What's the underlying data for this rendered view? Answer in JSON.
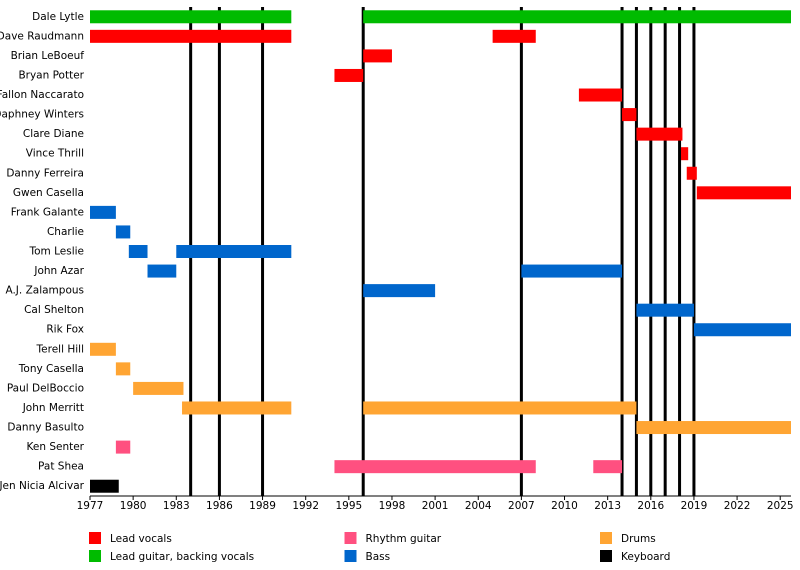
{
  "chart_data": {
    "type": "timeline",
    "roles": [
      {
        "name": "Lead vocals",
        "color": "#ff0000"
      },
      {
        "name": "Lead guitar, backing vocals",
        "color": "#00bb00"
      },
      {
        "name": "Rhythm guitar",
        "color": "#ff5080"
      },
      {
        "name": "Bass",
        "color": "#0066cc"
      },
      {
        "name": "Drums",
        "color": "#ffa533"
      },
      {
        "name": "Keyboard",
        "color": "#000000"
      }
    ],
    "members": [
      {
        "name": "Dale Lytle",
        "periods": [
          {
            "role": 1,
            "start": 1977,
            "end": 1991
          },
          {
            "role": 1,
            "start": 1996,
            "end": 2025.75
          }
        ]
      },
      {
        "name": "Dave Raudmann",
        "periods": [
          {
            "role": 0,
            "start": 1977,
            "end": 1991
          },
          {
            "role": 0,
            "start": 2005,
            "end": 2008
          }
        ]
      },
      {
        "name": "Brian LeBoeuf",
        "periods": [
          {
            "role": 0,
            "start": 1996,
            "end": 1998
          }
        ]
      },
      {
        "name": "Bryan Potter",
        "periods": [
          {
            "role": 0,
            "start": 1994,
            "end": 1996
          }
        ]
      },
      {
        "name": "Fallon Naccarato",
        "periods": [
          {
            "role": 0,
            "start": 2011,
            "end": 2014
          }
        ]
      },
      {
        "name": "Daphney Winters",
        "periods": [
          {
            "role": 0,
            "start": 2014,
            "end": 2015
          }
        ]
      },
      {
        "name": "Clare Diane",
        "periods": [
          {
            "role": 0,
            "start": 2015,
            "end": 2018.2
          }
        ]
      },
      {
        "name": "Vince Thrill",
        "periods": [
          {
            "role": 0,
            "start": 2018.1,
            "end": 2018.6
          }
        ]
      },
      {
        "name": "Danny Ferreira",
        "periods": [
          {
            "role": 0,
            "start": 2018.5,
            "end": 2019.2
          }
        ]
      },
      {
        "name": "Gwen Casella",
        "periods": [
          {
            "role": 0,
            "start": 2019.2,
            "end": 2025.75
          }
        ]
      },
      {
        "name": "Frank Galante",
        "periods": [
          {
            "role": 3,
            "start": 1977,
            "end": 1978.8
          }
        ]
      },
      {
        "name": "Charlie",
        "periods": [
          {
            "role": 3,
            "start": 1978.8,
            "end": 1979.8
          }
        ]
      },
      {
        "name": "Tom Leslie",
        "periods": [
          {
            "role": 3,
            "start": 1979.7,
            "end": 1981
          },
          {
            "role": 3,
            "start": 1983,
            "end": 1991
          }
        ]
      },
      {
        "name": "John Azar",
        "periods": [
          {
            "role": 3,
            "start": 1981,
            "end": 1983
          },
          {
            "role": 3,
            "start": 2007,
            "end": 2014
          }
        ]
      },
      {
        "name": "A.J. Zalampous",
        "periods": [
          {
            "role": 3,
            "start": 1996,
            "end": 2001
          }
        ]
      },
      {
        "name": "Cal Shelton",
        "periods": [
          {
            "role": 3,
            "start": 2015,
            "end": 2019
          }
        ]
      },
      {
        "name": "Rik Fox",
        "periods": [
          {
            "role": 3,
            "start": 2019,
            "end": 2025.75
          }
        ]
      },
      {
        "name": "Terell Hill",
        "periods": [
          {
            "role": 4,
            "start": 1977,
            "end": 1978.8
          }
        ]
      },
      {
        "name": "Tony Casella",
        "periods": [
          {
            "role": 4,
            "start": 1978.8,
            "end": 1979.8
          }
        ]
      },
      {
        "name": "Paul DelBoccio",
        "periods": [
          {
            "role": 4,
            "start": 1980,
            "end": 1983.5
          }
        ]
      },
      {
        "name": "John Merritt",
        "periods": [
          {
            "role": 4,
            "start": 1983.4,
            "end": 1991
          },
          {
            "role": 4,
            "start": 1996,
            "end": 2015
          }
        ]
      },
      {
        "name": "Danny Basulto",
        "periods": [
          {
            "role": 4,
            "start": 2015,
            "end": 2025.75
          }
        ]
      },
      {
        "name": "Ken Senter",
        "periods": [
          {
            "role": 2,
            "start": 1978.8,
            "end": 1979.8
          }
        ]
      },
      {
        "name": "Pat Shea",
        "periods": [
          {
            "role": 2,
            "start": 1994,
            "end": 2008
          },
          {
            "role": 2,
            "start": 2012,
            "end": 2014
          }
        ]
      },
      {
        "name": "Jen Nicia Alcivar",
        "periods": [
          {
            "role": 5,
            "start": 1977,
            "end": 1979
          }
        ]
      }
    ],
    "events": [
      1984,
      1986,
      1989,
      1996,
      2007,
      2014,
      2015,
      2016,
      2017,
      2018,
      2019
    ],
    "xlim": [
      1977,
      2025.75
    ],
    "xticks": [
      1977,
      1980,
      1983,
      1986,
      1989,
      1992,
      1995,
      1998,
      2001,
      2004,
      2007,
      2010,
      2013,
      2016,
      2019,
      2022,
      2025
    ]
  }
}
